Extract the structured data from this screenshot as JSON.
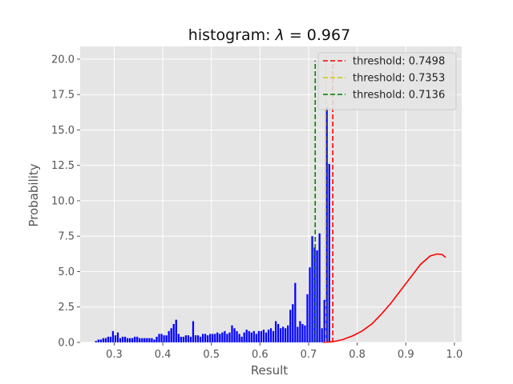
{
  "chart_data": {
    "type": "histogram",
    "title_prefix": "histogram: ",
    "title_symbol": "λ",
    "title_suffix": " = 0.967",
    "xlabel": "Result",
    "ylabel": "Probability",
    "xlim": [
      0.23,
      1.015
    ],
    "ylim": [
      0,
      20.9
    ],
    "xticks": [
      0.3,
      0.4,
      0.5,
      0.6,
      0.7,
      0.8,
      0.9,
      1.0
    ],
    "xtick_labels": [
      "0.3",
      "0.4",
      "0.5",
      "0.6",
      "0.7",
      "0.8",
      "0.9",
      "1.0"
    ],
    "yticks": [
      0,
      2.5,
      5,
      7.5,
      10,
      12.5,
      15,
      17.5,
      20
    ],
    "ytick_labels": [
      "0.0",
      "2.5",
      "5.0",
      "7.5",
      "10.0",
      "12.5",
      "15.0",
      "17.5",
      "20.0"
    ],
    "grid": true,
    "legend_position": "top-right",
    "colors": {
      "background": "#e5e5e5",
      "grid": "#ffffff",
      "bars": "#0000ff",
      "curve": "#ff0000"
    },
    "histogram": {
      "bin_start": 0.26,
      "bin_width": 0.005,
      "values": [
        0.1,
        0.2,
        0.2,
        0.3,
        0.3,
        0.4,
        0.4,
        0.8,
        0.5,
        0.7,
        0.3,
        0.4,
        0.4,
        0.3,
        0.3,
        0.3,
        0.4,
        0.4,
        0.3,
        0.3,
        0.3,
        0.3,
        0.3,
        0.3,
        0.2,
        0.4,
        0.6,
        0.6,
        0.5,
        0.5,
        0.8,
        1.0,
        1.3,
        1.6,
        0.6,
        0.4,
        0.4,
        0.5,
        0.5,
        0.4,
        1.5,
        0.5,
        0.5,
        0.4,
        0.6,
        0.6,
        0.5,
        0.6,
        0.6,
        0.6,
        0.7,
        0.6,
        0.7,
        0.8,
        0.6,
        0.7,
        1.2,
        1.0,
        0.8,
        0.6,
        0.4,
        0.7,
        0.9,
        0.8,
        0.7,
        0.8,
        0.6,
        0.8,
        0.8,
        0.9,
        0.7,
        0.9,
        1.0,
        0.8,
        1.5,
        1.3,
        1.0,
        1.1,
        1.0,
        1.2,
        2.3,
        2.7,
        4.2,
        1.1,
        1.5,
        1.3,
        1.2,
        3.4,
        5.3,
        7.5,
        6.7,
        6.5,
        7.7,
        1.0,
        3.0,
        16.6,
        12.6
      ]
    },
    "curve": {
      "name": "fit",
      "points": [
        [
          0.73,
          0.0
        ],
        [
          0.75,
          0.05
        ],
        [
          0.77,
          0.2
        ],
        [
          0.79,
          0.45
        ],
        [
          0.81,
          0.8
        ],
        [
          0.83,
          1.3
        ],
        [
          0.85,
          2.0
        ],
        [
          0.87,
          2.8
        ],
        [
          0.89,
          3.7
        ],
        [
          0.91,
          4.6
        ],
        [
          0.93,
          5.5
        ],
        [
          0.95,
          6.1
        ],
        [
          0.965,
          6.25
        ],
        [
          0.975,
          6.2
        ],
        [
          0.982,
          6.0
        ]
      ]
    },
    "thresholds": [
      {
        "label": "threshold: 0.7498",
        "value": 0.7498,
        "color": "#ff0000",
        "height": 19.9
      },
      {
        "label": "threshold: 0.7353",
        "value": 0.7353,
        "color": "#c8c800",
        "height": 19.9
      },
      {
        "label": "threshold: 0.7136",
        "value": 0.7136,
        "color": "#008000",
        "height": 19.9
      }
    ]
  }
}
